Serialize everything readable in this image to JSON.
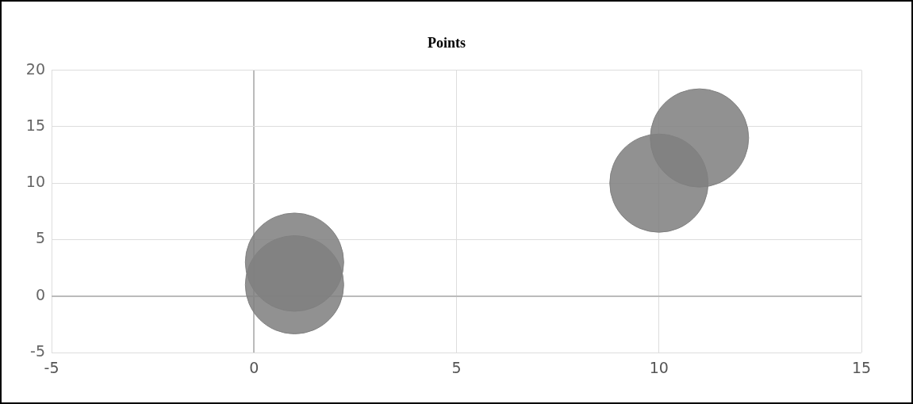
{
  "chart_data": {
    "type": "bubble",
    "title": "Points",
    "x": [
      1,
      1,
      10,
      11
    ],
    "values": [
      1,
      3,
      10,
      14
    ],
    "sizes": [
      1,
      1,
      1,
      1
    ],
    "color": "#808080",
    "xlim": [
      -5,
      15
    ],
    "xticks": [
      -5,
      0,
      5,
      10,
      15
    ],
    "ylim": [
      -5,
      20
    ],
    "yticks": [
      -5,
      0,
      5,
      10,
      15,
      20
    ],
    "grid": true,
    "legend": false
  }
}
